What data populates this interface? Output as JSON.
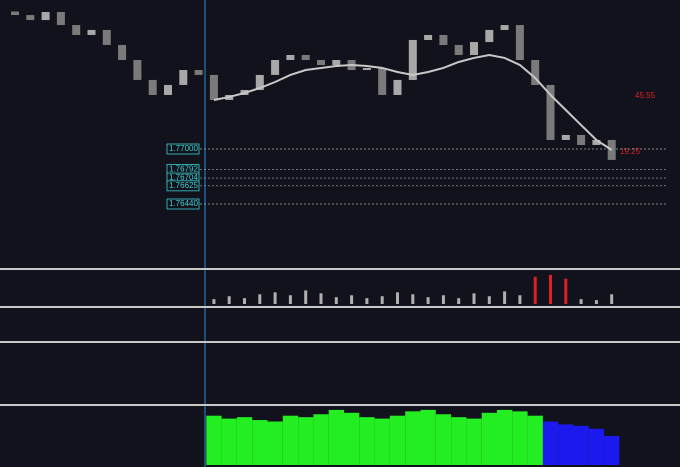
{
  "chart_data": {
    "type": "candlestick",
    "ylim": [
      1.75819,
      1.78517
    ],
    "yticks": [
      {
        "value": 1.77,
        "label": "1.77000"
      },
      {
        "value": 1.76792,
        "label": "1.76792"
      },
      {
        "value": 1.76704,
        "label": "1.76704"
      },
      {
        "value": 1.76625,
        "label": "1.76625"
      },
      {
        "value": 1.7644,
        "label": "1.76440"
      }
    ],
    "first_open": 1.784,
    "close": [
      1.78364,
      1.78313,
      1.78395,
      1.78262,
      1.78161,
      1.78212,
      1.78059,
      1.77906,
      1.77703,
      1.7755,
      1.77652,
      1.77804,
      1.77754,
      1.77499,
      1.7755,
      1.77601,
      1.77754,
      1.77906,
      1.77957,
      1.77906,
      1.77855,
      1.77906,
      1.77804,
      1.77825,
      1.7755,
      1.77703,
      1.7811,
      1.78161,
      1.78059,
      1.77957,
      1.78089,
      1.78212,
      1.78262,
      1.77906,
      1.77652,
      1.77092,
      1.77143,
      1.77041,
      1.77092,
      1.76889
    ],
    "moving_average": {
      "color": "#c8c8c8",
      "values": [
        null,
        null,
        null,
        null,
        null,
        null,
        null,
        null,
        null,
        null,
        null,
        null,
        null,
        1.77499,
        1.7753,
        1.7757,
        1.77621,
        1.77682,
        1.77754,
        1.77804,
        1.77825,
        1.77845,
        1.77855,
        1.77845,
        1.77825,
        1.77784,
        1.77754,
        1.77784,
        1.77825,
        1.77886,
        1.77927,
        1.77957,
        1.77927,
        1.77855,
        1.77723,
        1.7755,
        1.77397,
        1.77244,
        1.77092,
        1.7699
      ]
    },
    "annotations": [
      "45.55",
      "19.25"
    ],
    "volume": {
      "ylim": [
        0,
        35
      ],
      "values": [
        null,
        null,
        null,
        null,
        null,
        null,
        null,
        null,
        null,
        null,
        null,
        null,
        null,
        5,
        8,
        6,
        10,
        12,
        9,
        14,
        11,
        7,
        9,
        6,
        8,
        12,
        10,
        7,
        9,
        6,
        11,
        8,
        13,
        9,
        28,
        30,
        26,
        5,
        4,
        10
      ]
    },
    "histogram": {
      "ylim": [
        0,
        40
      ],
      "series": [
        {
          "color": "#22ee22",
          "values": [
            null,
            null,
            null,
            null,
            null,
            null,
            null,
            null,
            null,
            null,
            null,
            null,
            null,
            34,
            32,
            33,
            31,
            30,
            34,
            33,
            35,
            38,
            36,
            33,
            32,
            34,
            37,
            38,
            35,
            33,
            32,
            36,
            38,
            37,
            34,
            null,
            null,
            null,
            null,
            null
          ]
        },
        {
          "color": "#1a1aee",
          "values": [
            null,
            null,
            null,
            null,
            null,
            null,
            null,
            null,
            null,
            null,
            null,
            null,
            null,
            null,
            null,
            null,
            null,
            null,
            null,
            null,
            null,
            null,
            null,
            null,
            null,
            null,
            null,
            null,
            null,
            null,
            null,
            null,
            null,
            null,
            null,
            30,
            28,
            27,
            25,
            20
          ]
        }
      ]
    }
  }
}
